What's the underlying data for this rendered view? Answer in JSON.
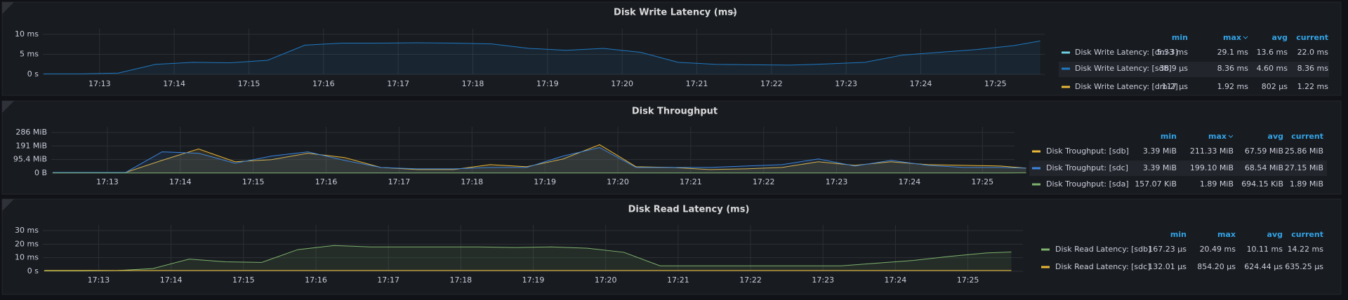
{
  "chart_data": [
    {
      "type": "line",
      "title": "Disk Write Latency (ms)",
      "x": [
        12.25,
        12.75,
        13.25,
        13.75,
        14.25,
        14.75,
        15.25,
        15.75,
        16.25,
        16.75,
        17.25,
        17.75,
        18.25,
        18.75,
        19.25,
        19.75,
        20.25,
        20.75,
        21.25,
        21.75,
        22.25,
        22.75,
        23.25,
        23.75,
        24.25,
        24.75,
        25.25,
        25.6
      ],
      "xlim": [
        12.24,
        25.66
      ],
      "xticks": [
        {
          "value": 13,
          "label": "17:13"
        },
        {
          "value": 14,
          "label": "17:14"
        },
        {
          "value": 15,
          "label": "17:15"
        },
        {
          "value": 16,
          "label": "17:16"
        },
        {
          "value": 17,
          "label": "17:17"
        },
        {
          "value": 18,
          "label": "17:18"
        },
        {
          "value": 19,
          "label": "17:19"
        },
        {
          "value": 20,
          "label": "17:20"
        },
        {
          "value": 21,
          "label": "17:21"
        },
        {
          "value": 22,
          "label": "17:22"
        },
        {
          "value": 23,
          "label": "17:23"
        },
        {
          "value": 24,
          "label": "17:24"
        },
        {
          "value": 25,
          "label": "17:25"
        }
      ],
      "ylim": [
        0,
        10
      ],
      "yticks": [
        {
          "value": 0,
          "label": "0 s"
        },
        {
          "value": 5,
          "label": "5 ms"
        },
        {
          "value": 10,
          "label": "10 ms"
        }
      ],
      "grid": true,
      "legend_columns": [
        "min",
        "max",
        "avg",
        "current"
      ],
      "series": [
        {
          "name": "Disk Write Latency: [dm-3]",
          "color": "#6ed0e0",
          "min": "5.33 ms",
          "max": "29.1 ms",
          "avg": "13.6 ms",
          "current": "22.0 ms"
        },
        {
          "name": "Disk Write Latency: [sdb]",
          "color": "#1f78c1",
          "min": "38.9 µs",
          "max": "8.36 ms",
          "avg": "4.60 ms",
          "current": "8.36 ms",
          "values": [
            0.1,
            0.1,
            0.3,
            2.5,
            3,
            2.9,
            3.5,
            7.3,
            7.8,
            7.8,
            7.9,
            7.8,
            7.6,
            6.5,
            6.0,
            6.5,
            5.5,
            3,
            2.5,
            2.4,
            2.3,
            2.6,
            3.0,
            4.8,
            5.5,
            6.2,
            7.2,
            8.36
          ]
        },
        {
          "name": "Disk Write Latency: [dm-2]",
          "color": "#eab839",
          "min": "117 µs",
          "max": "1.92 ms",
          "avg": "802 µs",
          "current": "1.22 ms"
        }
      ]
    },
    {
      "type": "line",
      "title": "Disk Throughput",
      "x": [
        12.25,
        12.75,
        13.25,
        13.75,
        14.25,
        14.75,
        15.25,
        15.75,
        16.25,
        16.75,
        17.25,
        17.75,
        18.25,
        18.75,
        19.25,
        19.75,
        20.25,
        20.75,
        21.25,
        21.75,
        22.25,
        22.75,
        23.25,
        23.75,
        24.25,
        24.75,
        25.25,
        25.6
      ],
      "xlim": [
        12.23,
        25.44
      ],
      "xticks": [
        {
          "value": 13,
          "label": "17:13"
        },
        {
          "value": 14,
          "label": "17:14"
        },
        {
          "value": 15,
          "label": "17:15"
        },
        {
          "value": 16,
          "label": "17:16"
        },
        {
          "value": 17,
          "label": "17:17"
        },
        {
          "value": 18,
          "label": "17:18"
        },
        {
          "value": 19,
          "label": "17:19"
        },
        {
          "value": 20,
          "label": "17:20"
        },
        {
          "value": 21,
          "label": "17:21"
        },
        {
          "value": 22,
          "label": "17:22"
        },
        {
          "value": 23,
          "label": "17:23"
        },
        {
          "value": 24,
          "label": "17:24"
        },
        {
          "value": 25,
          "label": "17:25"
        }
      ],
      "ylim": [
        0,
        286
      ],
      "yticks": [
        {
          "value": 0,
          "label": "0 B"
        },
        {
          "value": 95.4,
          "label": "95.4 MiB"
        },
        {
          "value": 191,
          "label": "191 MiB"
        },
        {
          "value": 286,
          "label": "286 MiB"
        }
      ],
      "grid": true,
      "legend_columns": [
        "min",
        "max",
        "avg",
        "current"
      ],
      "series": [
        {
          "name": "Disk Troughput: [sdb]",
          "color": "#eab839",
          "min": "3.39 MiB",
          "max": "211.33 MiB",
          "avg": "67.59 MiB",
          "current": "25.86 MiB",
          "values": [
            5,
            5,
            5,
            90,
            170,
            80,
            95,
            140,
            110,
            40,
            25,
            25,
            60,
            45,
            100,
            200,
            45,
            40,
            25,
            30,
            40,
            80,
            55,
            80,
            60,
            55,
            50,
            35
          ]
        },
        {
          "name": "Disk Troughput: [sdc]",
          "color": "#3d85de",
          "min": "3.39 MiB",
          "max": "199.10 MiB",
          "avg": "68.54 MiB",
          "current": "27.15 MiB",
          "values": [
            5,
            5,
            5,
            150,
            140,
            70,
            120,
            150,
            90,
            40,
            30,
            30,
            40,
            40,
            120,
            180,
            40,
            40,
            40,
            50,
            60,
            100,
            50,
            90,
            55,
            40,
            40,
            35
          ]
        },
        {
          "name": "Disk Troughput: [sda]",
          "color": "#7eb26d",
          "min": "157.07 KiB",
          "max": "1.89 MiB",
          "avg": "694.15 KiB",
          "current": "1.89 MiB",
          "values": [
            1,
            1,
            1,
            1.5,
            1.2,
            1,
            1,
            1.5,
            1,
            1,
            1,
            1,
            1,
            1,
            1,
            1.5,
            1,
            1,
            1,
            1,
            1,
            1,
            1,
            1,
            1,
            1,
            1,
            1.89
          ]
        }
      ]
    },
    {
      "type": "line",
      "title": "Disk Read Latency (ms)",
      "x": [
        12.25,
        12.75,
        13.25,
        13.75,
        14.25,
        14.75,
        15.25,
        15.75,
        16.25,
        16.75,
        17.25,
        17.75,
        18.25,
        18.75,
        19.25,
        19.75,
        20.25,
        20.75,
        21.25,
        21.75,
        22.25,
        22.75,
        23.25,
        23.75,
        24.25,
        24.75,
        25.25,
        25.6
      ],
      "xlim": [
        12.23,
        25.76
      ],
      "xticks": [
        {
          "value": 13,
          "label": "17:13"
        },
        {
          "value": 14,
          "label": "17:14"
        },
        {
          "value": 15,
          "label": "17:15"
        },
        {
          "value": 16,
          "label": "17:16"
        },
        {
          "value": 17,
          "label": "17:17"
        },
        {
          "value": 18,
          "label": "17:18"
        },
        {
          "value": 19,
          "label": "17:19"
        },
        {
          "value": 20,
          "label": "17:20"
        },
        {
          "value": 21,
          "label": "17:21"
        },
        {
          "value": 22,
          "label": "17:22"
        },
        {
          "value": 23,
          "label": "17:23"
        },
        {
          "value": 24,
          "label": "17:24"
        },
        {
          "value": 25,
          "label": "17:25"
        }
      ],
      "ylim": [
        0,
        30
      ],
      "yticks": [
        {
          "value": 0,
          "label": "0 s"
        },
        {
          "value": 10,
          "label": "10 ms"
        },
        {
          "value": 20,
          "label": "20 ms"
        },
        {
          "value": 30,
          "label": "30 ms"
        }
      ],
      "grid": true,
      "legend_columns": [
        "min",
        "max",
        "avg",
        "current"
      ],
      "series": [
        {
          "name": "Disk Read Latency: [sdb]",
          "color": "#7eb26d",
          "min": "167.23 µs",
          "max": "20.49 ms",
          "avg": "10.11 ms",
          "current": "14.22 ms",
          "values": [
            0.2,
            0.2,
            0.5,
            2,
            9,
            7,
            6.5,
            16,
            19,
            18,
            18,
            18,
            18,
            17.5,
            18,
            17,
            14,
            4,
            4,
            4,
            4,
            4,
            4,
            6,
            8,
            11,
            13.5,
            14.2
          ]
        },
        {
          "name": "Disk Read Latency: [sdc]",
          "color": "#eab839",
          "min": "132.01 µs",
          "max": "854.20 µs",
          "avg": "624.44 µs",
          "current": "635.25 µs",
          "values": [
            0.6,
            0.6,
            0.6,
            0.6,
            0.6,
            0.6,
            0.6,
            0.6,
            0.6,
            0.6,
            0.6,
            0.6,
            0.6,
            0.6,
            0.6,
            0.6,
            0.6,
            0.6,
            0.6,
            0.6,
            0.6,
            0.6,
            0.6,
            0.6,
            0.6,
            0.6,
            0.6,
            0.6
          ]
        }
      ]
    }
  ]
}
